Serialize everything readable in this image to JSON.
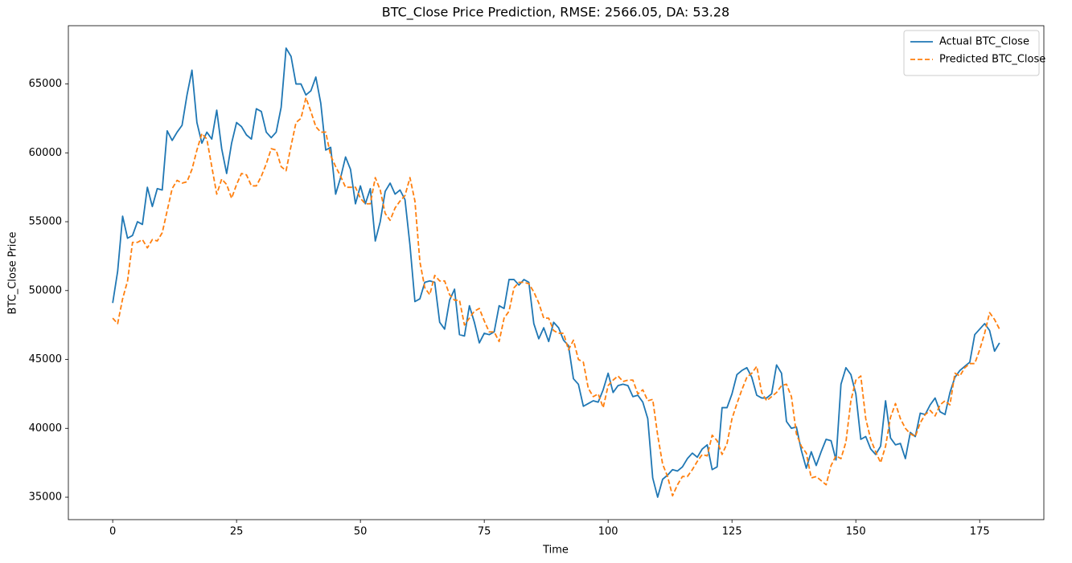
{
  "chart_data": {
    "type": "line",
    "title": "BTC_Close Price Prediction, RMSE: 2566.05, DA: 53.28",
    "x_label": "Time",
    "y_label": "BTC_Close Price",
    "x": [
      0,
      1,
      2,
      3,
      4,
      5,
      6,
      7,
      8,
      9,
      10,
      11,
      12,
      13,
      14,
      15,
      16,
      17,
      18,
      19,
      20,
      21,
      22,
      23,
      24,
      25,
      26,
      27,
      28,
      29,
      30,
      31,
      32,
      33,
      34,
      35,
      36,
      37,
      38,
      39,
      40,
      41,
      42,
      43,
      44,
      45,
      46,
      47,
      48,
      49,
      50,
      51,
      52,
      53,
      54,
      55,
      56,
      57,
      58,
      59,
      60,
      61,
      62,
      63,
      64,
      65,
      66,
      67,
      68,
      69,
      70,
      71,
      72,
      73,
      74,
      75,
      76,
      77,
      78,
      79,
      80,
      81,
      82,
      83,
      84,
      85,
      86,
      87,
      88,
      89,
      90,
      91,
      92,
      93,
      94,
      95,
      96,
      97,
      98,
      99,
      100,
      101,
      102,
      103,
      104,
      105,
      106,
      107,
      108,
      109,
      110,
      111,
      112,
      113,
      114,
      115,
      116,
      117,
      118,
      119,
      120,
      121,
      122,
      123,
      124,
      125,
      126,
      127,
      128,
      129,
      130,
      131,
      132,
      133,
      134,
      135,
      136,
      137,
      138,
      139,
      140,
      141,
      142,
      143,
      144,
      145,
      146,
      147,
      148,
      149,
      150,
      151,
      152,
      153,
      154,
      155,
      156,
      157,
      158,
      159,
      160,
      161,
      162,
      163,
      164,
      165,
      166,
      167,
      168,
      169,
      170,
      171,
      172,
      173,
      174,
      175,
      176,
      177,
      178,
      179
    ],
    "series": [
      {
        "name": "Actual BTC_Close",
        "color": "#1f77b4",
        "linestyle": "solid",
        "values": [
          49100,
          51400,
          55400,
          53800,
          54000,
          55000,
          54800,
          57500,
          56100,
          57400,
          57300,
          61600,
          60900,
          61500,
          62000,
          64200,
          66000,
          62200,
          60700,
          61500,
          61000,
          63100,
          60300,
          58500,
          60700,
          62200,
          61900,
          61300,
          61000,
          63200,
          63000,
          61500,
          61100,
          61500,
          63300,
          67600,
          67000,
          65000,
          65000,
          64200,
          64500,
          65500,
          63600,
          60200,
          60400,
          57000,
          58200,
          59700,
          58800,
          56300,
          57600,
          56300,
          57400,
          53600,
          55000,
          57200,
          57800,
          57000,
          57300,
          56600,
          53300,
          49200,
          49400,
          50600,
          50700,
          50600,
          47700,
          47200,
          49300,
          50100,
          46800,
          46700,
          48900,
          47700,
          46200,
          46900,
          46800,
          47000,
          48900,
          48700,
          50800,
          50800,
          50400,
          50800,
          50600,
          47600,
          46500,
          47300,
          46300,
          47700,
          47300,
          46400,
          46000,
          43600,
          43200,
          41600,
          41800,
          42000,
          41900,
          42800,
          44000,
          42600,
          43100,
          43200,
          43100,
          42300,
          42400,
          41900,
          40700,
          36400,
          35000,
          36300,
          36600,
          37000,
          36900,
          37200,
          37800,
          38200,
          37900,
          38500,
          38800,
          37000,
          37200,
          41500,
          41500,
          42500,
          43900,
          44200,
          44400,
          43700,
          42400,
          42200,
          42200,
          42500,
          44600,
          44000,
          40500,
          40000,
          40100,
          38400,
          37100,
          38300,
          37300,
          38300,
          39200,
          39100,
          37700,
          43200,
          44400,
          43900,
          42500,
          39200,
          39400,
          38500,
          38100,
          38700,
          42000,
          39300,
          38800,
          38900,
          37800,
          39700,
          39400,
          41100,
          41000,
          41700,
          42200,
          41200,
          41000,
          42600,
          43700,
          44200,
          44500,
          44800,
          46800,
          47200,
          47600,
          47100,
          45600,
          46200
        ]
      },
      {
        "name": "Predicted BTC_Close",
        "color": "#ff7f0e",
        "linestyle": "dashed",
        "values": [
          48000,
          47600,
          49400,
          50700,
          53500,
          53500,
          53700,
          53100,
          53700,
          53600,
          54200,
          55800,
          57400,
          58000,
          57800,
          57900,
          58800,
          60200,
          61400,
          61000,
          59000,
          57000,
          58100,
          57700,
          56700,
          57700,
          58500,
          58400,
          57600,
          57600,
          58300,
          59200,
          60300,
          60200,
          59000,
          58700,
          60500,
          62200,
          62500,
          64000,
          63000,
          61900,
          61500,
          61500,
          59800,
          59000,
          58300,
          57500,
          57500,
          57500,
          56700,
          56300,
          56300,
          58200,
          57300,
          55600,
          55100,
          56000,
          56500,
          56900,
          58200,
          56500,
          52100,
          50200,
          49700,
          51100,
          50700,
          50700,
          49700,
          49300,
          49300,
          47500,
          48000,
          48500,
          48700,
          47800,
          47000,
          47000,
          46300,
          48000,
          48500,
          50200,
          50600,
          50600,
          50500,
          49900,
          49100,
          48000,
          48000,
          47100,
          46900,
          46900,
          45700,
          46400,
          45000,
          44800,
          42900,
          42300,
          42500,
          41500,
          43100,
          43500,
          43800,
          43400,
          43500,
          43500,
          42500,
          42800,
          42000,
          42100,
          39500,
          37400,
          36500,
          35100,
          35900,
          36500,
          36500,
          37000,
          37600,
          38100,
          38000,
          39500,
          39100,
          38100,
          38900,
          40700,
          41800,
          42800,
          43700,
          44000,
          44500,
          42600,
          42000,
          42300,
          42600,
          43100,
          43200,
          42300,
          39600,
          38700,
          38200,
          36400,
          36500,
          36200,
          35900,
          37300,
          38000,
          37800,
          39000,
          42000,
          43500,
          43800,
          40700,
          39200,
          38300,
          37500,
          38700,
          40800,
          41800,
          40700,
          40000,
          39600,
          39400,
          40400,
          41000,
          41300,
          40900,
          41700,
          42000,
          41700,
          44000,
          43800,
          44400,
          44700,
          44700,
          45700,
          46900,
          48400,
          47900,
          47200
        ]
      }
    ],
    "xlim": [
      -8.95,
      187.95
    ],
    "ylim": [
      33370,
      69230
    ],
    "xticks": [
      0,
      25,
      50,
      75,
      100,
      125,
      150,
      175
    ],
    "yticks": [
      35000,
      40000,
      45000,
      50000,
      55000,
      60000,
      65000
    ],
    "grid": false,
    "legend": "upper right"
  }
}
